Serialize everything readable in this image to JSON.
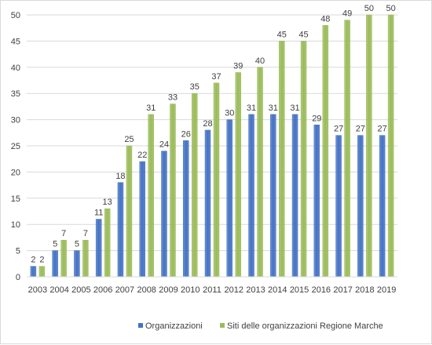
{
  "chart_data": {
    "type": "bar",
    "categories": [
      "2003",
      "2004",
      "2005",
      "2006",
      "2007",
      "2008",
      "2009",
      "2010",
      "2011",
      "2012",
      "2013",
      "2014",
      "2015",
      "2016",
      "2017",
      "2018",
      "2019"
    ],
    "series": [
      {
        "name": "Organizzazioni",
        "color": "#4472c4",
        "values": [
          2,
          5,
          5,
          11,
          18,
          22,
          24,
          26,
          28,
          30,
          31,
          31,
          31,
          29,
          27,
          27,
          27
        ]
      },
      {
        "name": "Siti delle organizzazioni Regione Marche",
        "color": "#9bbb59",
        "values": [
          2,
          7,
          7,
          13,
          25,
          31,
          33,
          35,
          37,
          39,
          40,
          45,
          45,
          48,
          49,
          50,
          50
        ]
      }
    ],
    "yticks": [
      0,
      5,
      10,
      15,
      20,
      25,
      30,
      35,
      40,
      45,
      50
    ],
    "ylim": [
      0,
      50
    ],
    "grid": true,
    "data_labels": true,
    "legend_position": "bottom",
    "title": "",
    "xlabel": "",
    "ylabel": ""
  }
}
